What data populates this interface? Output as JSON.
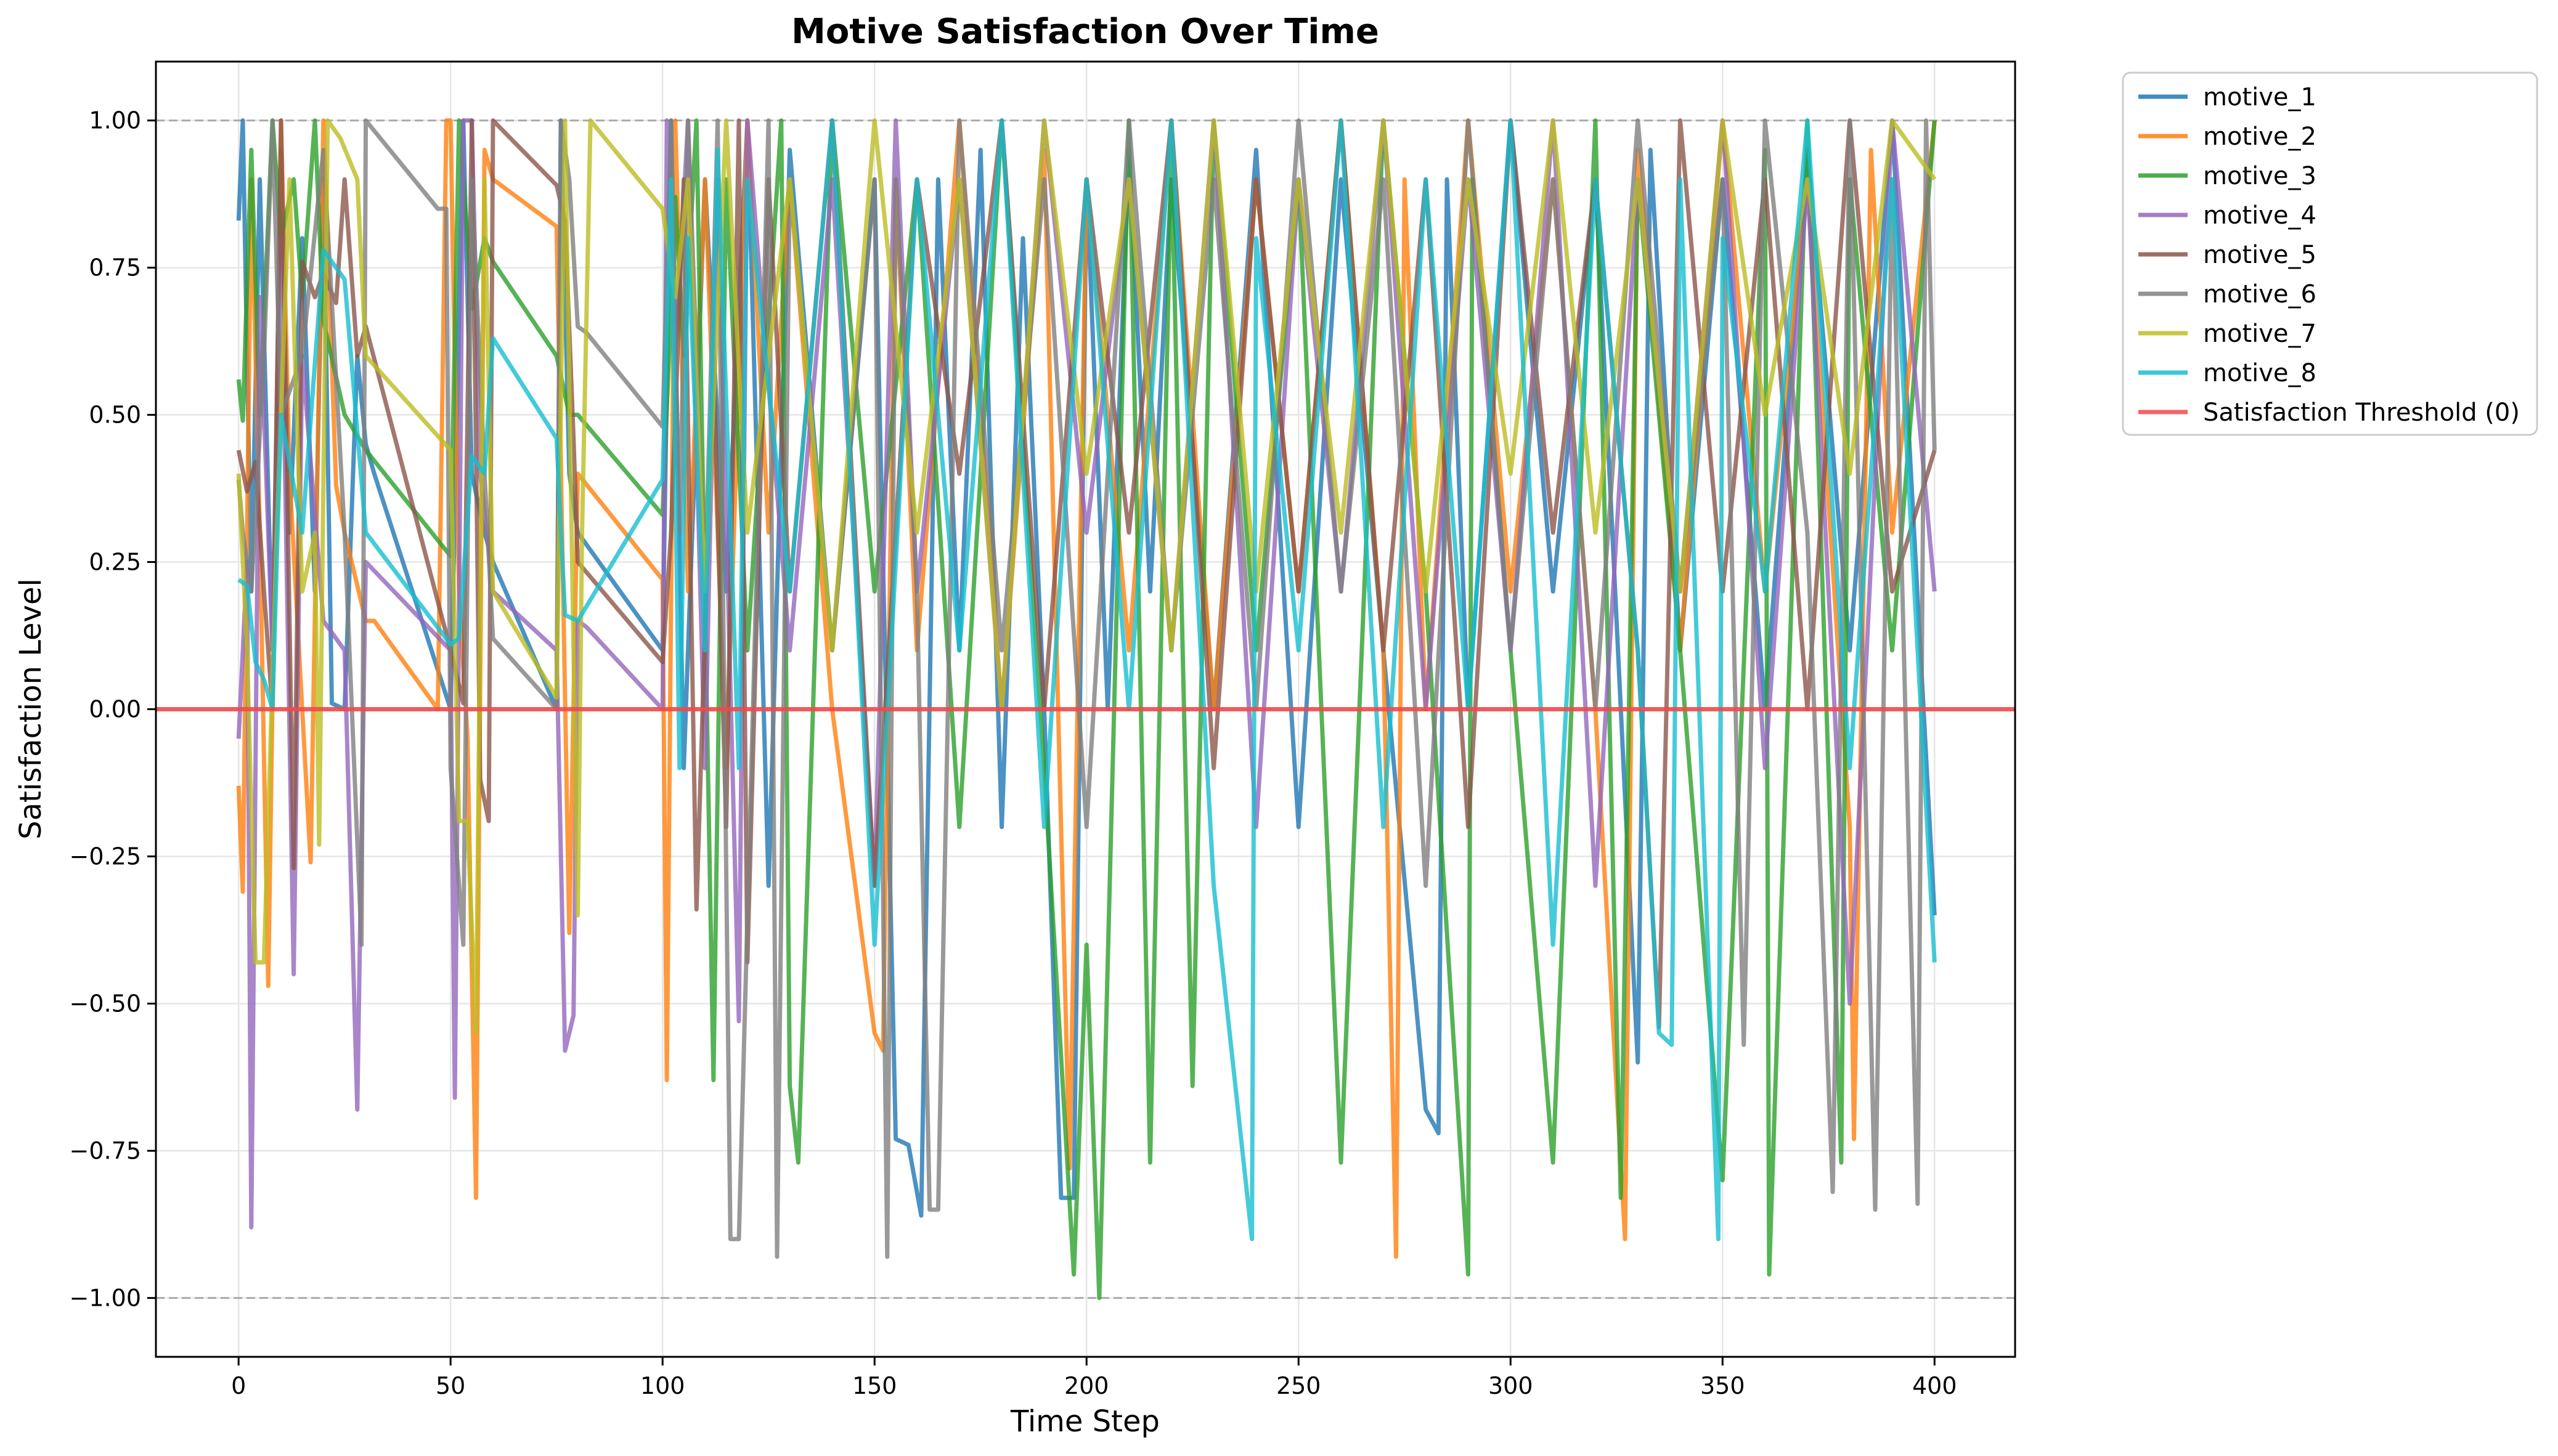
{
  "chart_data": {
    "type": "line",
    "title": "Motive Satisfaction Over Time",
    "xlabel": "Time Step",
    "ylabel": "Satisfaction Level",
    "xlim": [
      -19.5,
      419
    ],
    "ylim": [
      -1.1,
      1.1
    ],
    "x_ticks": [
      0,
      50,
      100,
      150,
      200,
      250,
      300,
      350,
      400
    ],
    "x_tick_labels": [
      "0",
      "50",
      "100",
      "150",
      "200",
      "250",
      "300",
      "350",
      "400"
    ],
    "y_ticks": [
      1.0,
      0.75,
      0.5,
      0.25,
      0.0,
      -0.25,
      -0.5,
      -0.75,
      -1.0
    ],
    "y_tick_labels": [
      "1.00",
      "0.75",
      "0.50",
      "0.25",
      "0.00",
      "−0.25",
      "−0.50",
      "−0.75",
      "−1.00"
    ],
    "grid": true,
    "legend_position": "outside-top-right",
    "reference_lines": [
      {
        "y": 1.0,
        "style": "dashed",
        "color": "#aaaaaa"
      },
      {
        "y": -1.0,
        "style": "dashed",
        "color": "#aaaaaa"
      }
    ],
    "threshold": {
      "name": "Satisfaction Threshold (0)",
      "y": 0,
      "color": "#f04a4a"
    },
    "series": [
      {
        "name": "motive_1",
        "color": "#1f77b4",
        "x": [
          0,
          1,
          3,
          5,
          8,
          10,
          12,
          15,
          18,
          20,
          22,
          25,
          28,
          30,
          32,
          50,
          53,
          55,
          58,
          60,
          75,
          76,
          78,
          80,
          100,
          102,
          105,
          110,
          115,
          120,
          125,
          130,
          140,
          150,
          155,
          158,
          161,
          165,
          170,
          175,
          180,
          185,
          190,
          194,
          197,
          200,
          205,
          210,
          215,
          220,
          230,
          240,
          250,
          260,
          270,
          280,
          283,
          285,
          290,
          300,
          310,
          320,
          330,
          333,
          340,
          350,
          360,
          370,
          380,
          390,
          400
        ],
        "y": [
          0.83,
          1.0,
          0.2,
          0.9,
          0.1,
          0.95,
          0.3,
          0.8,
          0.2,
          0.9,
          0.01,
          0.0,
          0.6,
          0.45,
          0.4,
          0.0,
          1.0,
          0.4,
          0.3,
          0.25,
          0.0,
          1.0,
          0.4,
          0.3,
          0.1,
          1.0,
          -0.1,
          0.9,
          0.2,
          1.0,
          -0.3,
          0.95,
          0.1,
          0.9,
          -0.73,
          -0.74,
          -0.86,
          0.9,
          0.1,
          0.95,
          -0.2,
          0.8,
          0.0,
          -0.83,
          -0.83,
          0.9,
          0.0,
          0.95,
          0.2,
          0.9,
          0.0,
          0.95,
          -0.2,
          0.9,
          0.1,
          -0.68,
          -0.72,
          0.9,
          0.0,
          1.0,
          0.2,
          0.9,
          -0.6,
          0.95,
          0.1,
          0.9,
          0.0,
          0.95,
          0.1,
          1.0,
          -0.35
        ]
      },
      {
        "name": "motive_2",
        "color": "#ff7f0e",
        "x": [
          0,
          1,
          3,
          5,
          7,
          10,
          12,
          15,
          17,
          20,
          23,
          25,
          30,
          32,
          47,
          49,
          50,
          52,
          54,
          56,
          58,
          60,
          75,
          78,
          80,
          100,
          101,
          103,
          106,
          110,
          115,
          120,
          125,
          130,
          140,
          150,
          152,
          155,
          160,
          170,
          180,
          190,
          196,
          200,
          210,
          220,
          230,
          240,
          250,
          260,
          270,
          273,
          275,
          280,
          290,
          300,
          310,
          320,
          327,
          330,
          340,
          350,
          360,
          370,
          380,
          381,
          385,
          390,
          400
        ],
        "y": [
          -0.13,
          -0.31,
          0.9,
          0.3,
          -0.47,
          1.0,
          0.4,
          0.0,
          -0.26,
          1.0,
          0.38,
          0.3,
          0.15,
          0.15,
          0.0,
          1.0,
          1.0,
          0.2,
          -0.05,
          -0.83,
          0.95,
          0.9,
          0.82,
          -0.38,
          0.4,
          0.22,
          -0.63,
          1.0,
          0.2,
          0.9,
          -0.1,
          1.0,
          0.3,
          0.9,
          0.0,
          -0.55,
          -0.58,
          0.9,
          0.1,
          1.0,
          0.0,
          0.95,
          -0.78,
          0.9,
          0.1,
          1.0,
          0.0,
          0.9,
          0.2,
          1.0,
          0.1,
          -0.93,
          0.9,
          0.0,
          1.0,
          0.2,
          0.9,
          0.0,
          -0.9,
          0.95,
          0.1,
          1.0,
          0.2,
          0.9,
          -0.2,
          -0.73,
          0.95,
          0.3,
          1.0
        ]
      },
      {
        "name": "motive_3",
        "color": "#2ca02c",
        "x": [
          0,
          1,
          3,
          5,
          8,
          10,
          13,
          15,
          18,
          20,
          25,
          30,
          50,
          52,
          54,
          55,
          58,
          60,
          75,
          78,
          80,
          100,
          103,
          105,
          108,
          112,
          115,
          120,
          128,
          130,
          132,
          140,
          150,
          160,
          170,
          180,
          190,
          197,
          200,
          203,
          210,
          215,
          220,
          225,
          230,
          240,
          250,
          260,
          270,
          280,
          290,
          291,
          300,
          310,
          320,
          326,
          330,
          340,
          350,
          360,
          361,
          370,
          378,
          380,
          390,
          400
        ],
        "y": [
          0.56,
          0.49,
          0.95,
          0.5,
          1.0,
          0.8,
          0.9,
          0.7,
          1.0,
          0.66,
          0.5,
          0.44,
          0.26,
          1.0,
          0.8,
          0.68,
          0.8,
          0.76,
          0.6,
          0.5,
          0.5,
          0.33,
          0.87,
          0.6,
          1.0,
          -0.63,
          0.9,
          0.1,
          1.0,
          -0.64,
          -0.77,
          1.0,
          0.2,
          0.9,
          -0.2,
          1.0,
          -0.1,
          -0.96,
          -0.4,
          -1.0,
          1.0,
          -0.77,
          0.95,
          -0.64,
          1.0,
          0.1,
          0.9,
          -0.77,
          1.0,
          0.2,
          -0.96,
          0.9,
          0.1,
          -0.77,
          1.0,
          -0.83,
          0.9,
          0.1,
          -0.8,
          0.95,
          -0.96,
          1.0,
          -0.77,
          0.9,
          0.1,
          1.0
        ]
      },
      {
        "name": "motive_4",
        "color": "#9467bd",
        "x": [
          0,
          2,
          3,
          5,
          8,
          10,
          13,
          15,
          20,
          25,
          28,
          30,
          50,
          51,
          53,
          55,
          57,
          60,
          75,
          77,
          79,
          80,
          82,
          100,
          101,
          103,
          106,
          110,
          113,
          118,
          120,
          130,
          140,
          150,
          155,
          160,
          170,
          180,
          190,
          200,
          210,
          220,
          230,
          240,
          250,
          260,
          270,
          280,
          290,
          300,
          310,
          320,
          330,
          340,
          350,
          360,
          370,
          380,
          390,
          400
        ],
        "y": [
          -0.05,
          0.25,
          -0.88,
          0.7,
          0.1,
          0.8,
          -0.45,
          0.6,
          0.15,
          0.1,
          -0.68,
          0.25,
          0.1,
          -0.66,
          1.0,
          1.0,
          0.4,
          0.2,
          0.1,
          -0.58,
          -0.52,
          0.15,
          0.14,
          0.0,
          1.0,
          0.6,
          1.0,
          -0.1,
          0.9,
          -0.53,
          1.0,
          0.1,
          0.9,
          -0.3,
          1.0,
          0.2,
          0.9,
          0.0,
          1.0,
          0.3,
          0.9,
          0.1,
          1.0,
          -0.2,
          0.9,
          0.2,
          1.0,
          0.0,
          0.9,
          0.1,
          1.0,
          -0.3,
          0.9,
          0.2,
          1.0,
          -0.1,
          0.9,
          -0.5,
          1.0,
          0.2
        ]
      },
      {
        "name": "motive_5",
        "color": "#8c564b",
        "x": [
          0,
          2,
          4,
          6,
          8,
          10,
          13,
          15,
          18,
          20,
          23,
          25,
          28,
          30,
          50,
          53,
          55,
          57,
          59,
          60,
          75,
          77,
          79,
          80,
          100,
          102,
          105,
          108,
          112,
          115,
          118,
          120,
          125,
          130,
          140,
          150,
          160,
          170,
          180,
          190,
          200,
          210,
          220,
          230,
          240,
          250,
          260,
          270,
          280,
          290,
          300,
          310,
          320,
          330,
          335,
          340,
          350,
          360,
          370,
          380,
          390,
          400
        ],
        "y": [
          0.44,
          0.37,
          0.42,
          0.2,
          0.0,
          1.0,
          -0.27,
          0.76,
          0.7,
          0.74,
          0.69,
          0.9,
          0.6,
          0.65,
          0.1,
          0.01,
          1.0,
          -0.12,
          -0.19,
          1.0,
          0.89,
          0.83,
          0.46,
          0.25,
          0.08,
          0.3,
          0.9,
          -0.34,
          0.6,
          -0.2,
          1.0,
          -0.43,
          0.9,
          0.2,
          1.0,
          -0.3,
          0.9,
          0.4,
          1.0,
          0.0,
          0.9,
          0.3,
          1.0,
          -0.1,
          0.9,
          0.2,
          1.0,
          0.1,
          0.9,
          -0.2,
          1.0,
          0.3,
          0.9,
          0.1,
          -0.54,
          1.0,
          0.2,
          0.9,
          0.0,
          1.0,
          0.2,
          0.44
        ]
      },
      {
        "name": "motive_6",
        "color": "#7f7f7f",
        "x": [
          0,
          1,
          3,
          6,
          8,
          10,
          15,
          20,
          25,
          29,
          30,
          47,
          49,
          50,
          53,
          55,
          58,
          60,
          75,
          76,
          78,
          80,
          82,
          100,
          102,
          104,
          106,
          110,
          113,
          116,
          118,
          125,
          127,
          130,
          140,
          150,
          153,
          155,
          160,
          163,
          165,
          170,
          180,
          190,
          200,
          210,
          220,
          230,
          240,
          250,
          260,
          270,
          280,
          290,
          300,
          310,
          320,
          330,
          340,
          350,
          355,
          360,
          370,
          376,
          380,
          386,
          390,
          396,
          398,
          400
        ],
        "y": [
          0.39,
          0.3,
          0.2,
          0.6,
          1.0,
          0.5,
          0.6,
          0.95,
          0.3,
          -0.4,
          1.0,
          0.85,
          0.85,
          -0.1,
          -0.4,
          0.9,
          0.4,
          0.12,
          0.0,
          1.0,
          0.9,
          0.65,
          0.64,
          0.48,
          1.0,
          0.3,
          1.0,
          0.2,
          1.0,
          -0.9,
          -0.9,
          1.0,
          -0.93,
          0.9,
          0.1,
          0.9,
          -0.93,
          0.9,
          0.2,
          -0.85,
          -0.85,
          1.0,
          0.1,
          0.9,
          -0.2,
          1.0,
          0.1,
          0.9,
          0.0,
          1.0,
          0.2,
          0.9,
          -0.3,
          1.0,
          0.1,
          0.9,
          0.0,
          1.0,
          0.2,
          0.9,
          -0.57,
          1.0,
          0.3,
          -0.82,
          1.0,
          -0.85,
          0.9,
          -0.84,
          1.0,
          0.44
        ]
      },
      {
        "name": "motive_7",
        "color": "#bcbd22",
        "x": [
          0,
          2,
          4,
          6,
          9,
          12,
          15,
          18,
          19,
          21,
          24,
          28,
          30,
          50,
          52,
          54,
          56,
          58,
          60,
          75,
          77,
          80,
          81,
          83,
          100,
          103,
          106,
          110,
          115,
          120,
          130,
          140,
          150,
          160,
          170,
          180,
          190,
          200,
          210,
          220,
          230,
          240,
          250,
          260,
          270,
          280,
          290,
          300,
          310,
          320,
          330,
          340,
          350,
          360,
          370,
          380,
          390,
          400
        ],
        "y": [
          0.4,
          0.1,
          -0.43,
          -0.43,
          0.3,
          0.9,
          0.2,
          0.3,
          -0.23,
          1.0,
          0.97,
          0.9,
          0.6,
          0.44,
          -0.19,
          -0.19,
          -0.55,
          0.9,
          0.2,
          0.02,
          1.0,
          -0.35,
          0.3,
          1.0,
          0.85,
          0.7,
          0.9,
          0.2,
          1.0,
          0.3,
          0.9,
          0.1,
          1.0,
          0.3,
          0.9,
          0.0,
          1.0,
          0.4,
          0.9,
          0.1,
          1.0,
          0.2,
          0.9,
          0.3,
          1.0,
          0.2,
          0.9,
          0.4,
          1.0,
          0.3,
          0.9,
          0.2,
          1.0,
          0.5,
          0.9,
          0.4,
          1.0,
          0.9
        ]
      },
      {
        "name": "motive_8",
        "color": "#17becf",
        "x": [
          0,
          2,
          4,
          6,
          8,
          10,
          15,
          20,
          22,
          25,
          30,
          50,
          52,
          55,
          58,
          60,
          75,
          77,
          80,
          100,
          102,
          104,
          106,
          110,
          113,
          118,
          120,
          130,
          140,
          150,
          160,
          170,
          180,
          190,
          200,
          210,
          220,
          230,
          239,
          240,
          250,
          260,
          270,
          280,
          290,
          300,
          310,
          320,
          330,
          335,
          338,
          340,
          349,
          350,
          360,
          370,
          380,
          390,
          400
        ],
        "y": [
          0.22,
          0.21,
          0.08,
          0.05,
          0.0,
          0.5,
          0.3,
          0.78,
          0.76,
          0.73,
          0.3,
          0.11,
          0.12,
          0.43,
          0.4,
          0.63,
          0.46,
          0.16,
          0.15,
          0.39,
          0.9,
          -0.1,
          0.8,
          0.1,
          0.95,
          -0.1,
          0.9,
          0.2,
          1.0,
          -0.4,
          0.9,
          0.1,
          1.0,
          -0.2,
          0.9,
          0.0,
          1.0,
          -0.3,
          -0.9,
          0.8,
          0.1,
          1.0,
          -0.2,
          0.9,
          0.0,
          1.0,
          -0.4,
          0.9,
          0.1,
          -0.55,
          -0.57,
          0.9,
          -0.9,
          0.8,
          0.2,
          1.0,
          -0.1,
          0.9,
          -0.43
        ]
      }
    ]
  }
}
